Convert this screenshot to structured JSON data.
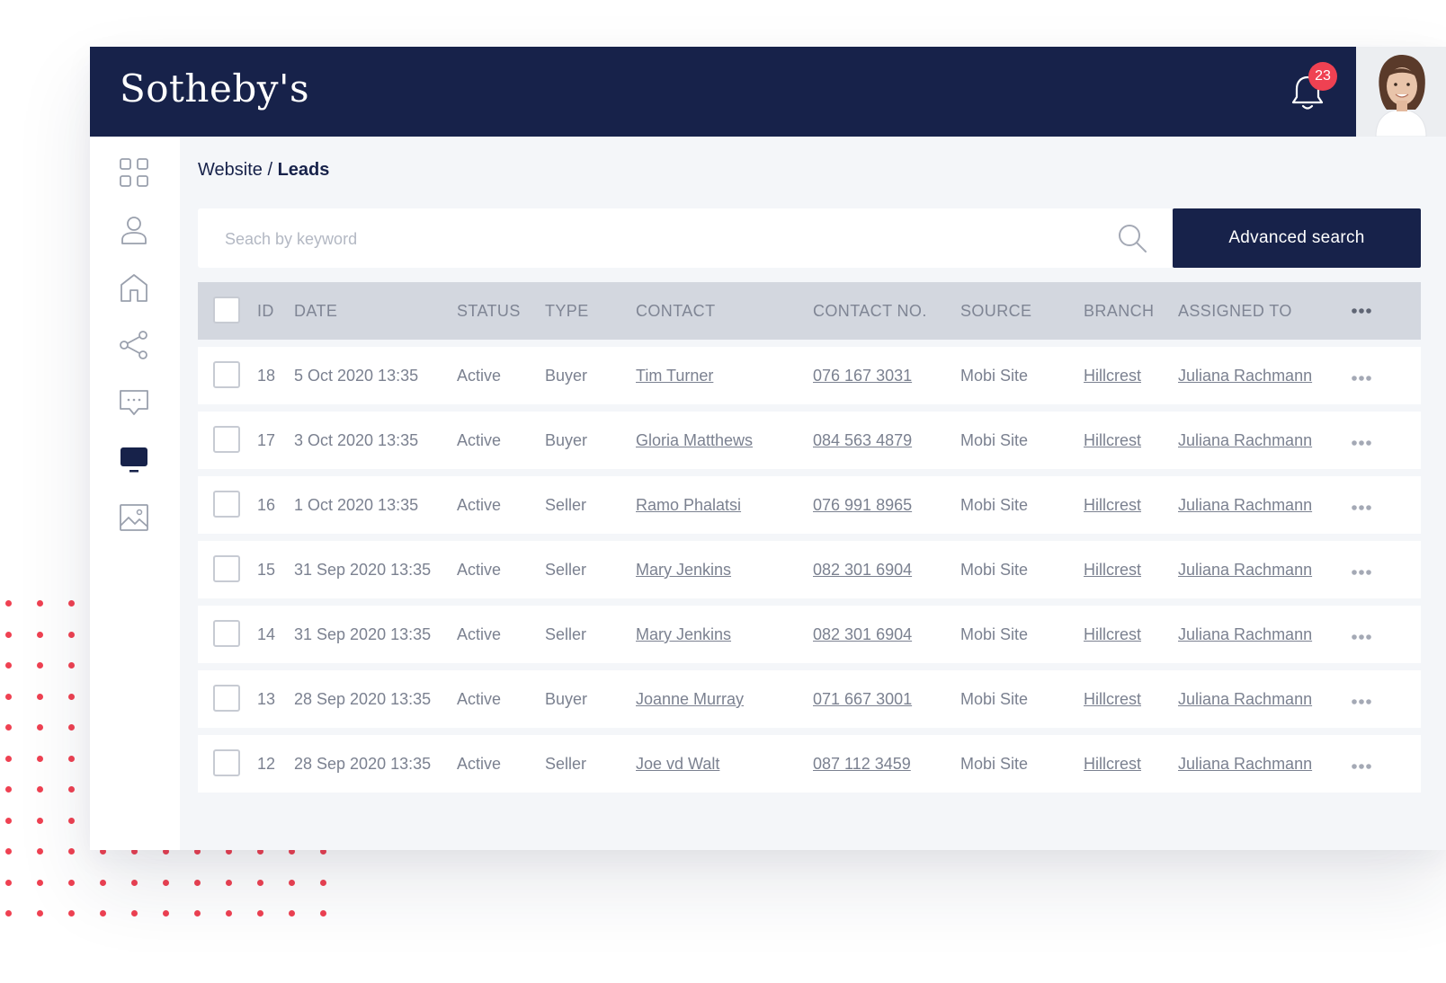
{
  "header": {
    "logo": "Sotheby's",
    "notification_count": "23"
  },
  "sidebar": {
    "items": [
      {
        "icon": "grid-icon"
      },
      {
        "icon": "user-icon"
      },
      {
        "icon": "home-icon"
      },
      {
        "icon": "share-icon"
      },
      {
        "icon": "chat-icon"
      },
      {
        "icon": "monitor-icon",
        "active": true
      },
      {
        "icon": "image-icon"
      }
    ]
  },
  "breadcrumb": {
    "parent": "Website",
    "separator": "/",
    "current": "Leads"
  },
  "search": {
    "placeholder": "Seach by keyword",
    "advanced_label": "Advanced search"
  },
  "table": {
    "columns": [
      "ID",
      "DATE",
      "STATUS",
      "TYPE",
      "CONTACT",
      "CONTACT NO.",
      "SOURCE",
      "BRANCH",
      "ASSIGNED TO"
    ],
    "rows": [
      {
        "id": "18",
        "date": "5 Oct 2020 13:35",
        "status": "Active",
        "type": "Buyer",
        "contact": "Tim Turner",
        "contact_no": "076 167 3031",
        "source": "Mobi Site",
        "branch": "Hillcrest",
        "assigned": "Juliana Rachmann"
      },
      {
        "id": "17",
        "date": "3 Oct 2020 13:35",
        "status": "Active",
        "type": "Buyer",
        "contact": "Gloria Matthews",
        "contact_no": "084 563 4879",
        "source": "Mobi Site",
        "branch": "Hillcrest",
        "assigned": "Juliana Rachmann"
      },
      {
        "id": "16",
        "date": "1 Oct 2020 13:35",
        "status": "Active",
        "type": "Seller",
        "contact": "Ramo Phalatsi",
        "contact_no": "076 991 8965",
        "source": "Mobi Site",
        "branch": "Hillcrest",
        "assigned": "Juliana Rachmann"
      },
      {
        "id": "15",
        "date": "31 Sep 2020 13:35",
        "status": "Active",
        "type": "Seller",
        "contact": "Mary Jenkins",
        "contact_no": "082 301 6904",
        "source": "Mobi Site",
        "branch": "Hillcrest",
        "assigned": "Juliana Rachmann"
      },
      {
        "id": "14",
        "date": "31 Sep 2020 13:35",
        "status": "Active",
        "type": "Seller",
        "contact": "Mary Jenkins",
        "contact_no": "082 301 6904",
        "source": "Mobi Site",
        "branch": "Hillcrest",
        "assigned": "Juliana Rachmann"
      },
      {
        "id": "13",
        "date": "28 Sep 2020 13:35",
        "status": "Active",
        "type": "Buyer",
        "contact": "Joanne Murray",
        "contact_no": "071 667 3001",
        "source": "Mobi Site",
        "branch": "Hillcrest",
        "assigned": "Juliana Rachmann"
      },
      {
        "id": "12",
        "date": "28 Sep 2020 13:35",
        "status": "Active",
        "type": "Seller",
        "contact": "Joe vd Walt",
        "contact_no": "087 112 3459",
        "source": "Mobi Site",
        "branch": "Hillcrest",
        "assigned": "Juliana Rachmann"
      }
    ]
  },
  "colors": {
    "navy": "#17224a",
    "accent_red": "#ef4152",
    "header_row": "#d3d7df",
    "background": "#f4f6f9"
  }
}
